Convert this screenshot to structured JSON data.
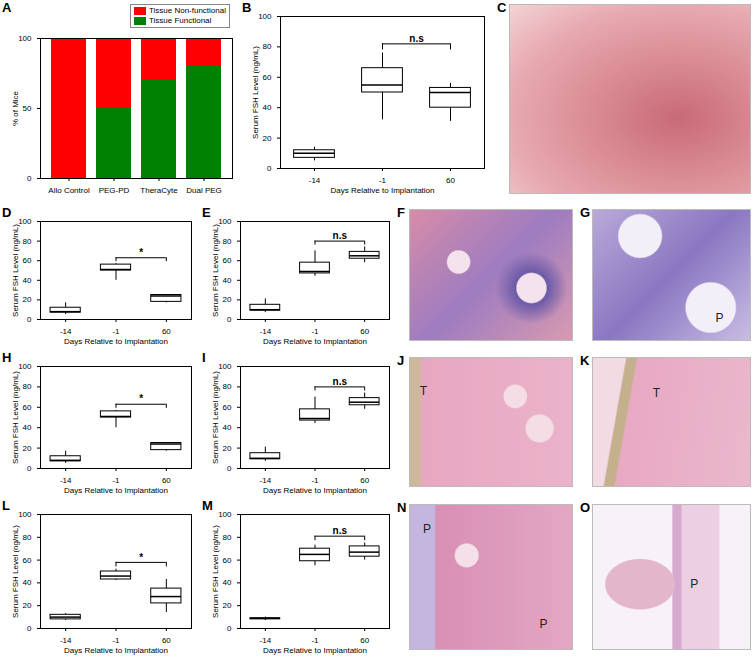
{
  "chart_data": [
    {
      "title": "A",
      "type": "bar",
      "stacked": true,
      "categories": [
        "Allo Control",
        "PEG-PD",
        "TheraCyte",
        "Dual PEG"
      ],
      "series": [
        {
          "name": "Tissue Non-functional",
          "color": "#ff0000",
          "values": [
            100,
            50,
            30,
            20
          ]
        },
        {
          "name": "Tissue Functional",
          "color": "#008000",
          "values": [
            0,
            50,
            70,
            80
          ]
        }
      ],
      "ylabel": "% of Mice",
      "ylim": [
        0,
        100
      ],
      "yticks": [
        0,
        50,
        100
      ],
      "legend": "top-right"
    },
    {
      "title": "B",
      "type": "box",
      "categories": [
        "-14",
        "-1",
        "60"
      ],
      "xlabel": "Days Relative to Implantation",
      "ylabel": "Serum FSH Level (ng/mL)",
      "ylim": [
        0,
        100
      ],
      "yticks": [
        0,
        20,
        40,
        60,
        80,
        100
      ],
      "min": [
        5,
        32,
        31
      ],
      "q1": [
        7,
        50,
        40
      ],
      "median": [
        10,
        55,
        50
      ],
      "q3": [
        12,
        66,
        53
      ],
      "max": [
        14,
        76,
        56
      ],
      "annotations": [
        {
          "text": "n.s",
          "from": "-1",
          "to": "60"
        }
      ]
    },
    {
      "title": "D",
      "type": "box",
      "categories": [
        "-14",
        "-1",
        "60"
      ],
      "xlabel": "Days Relative to Implantation",
      "ylabel": "Serum FSH Level (ng/mL)",
      "ylim": [
        0,
        100
      ],
      "yticks": [
        0,
        20,
        40,
        60,
        80,
        100
      ],
      "min": [
        5,
        40,
        17
      ],
      "q1": [
        7,
        50,
        18
      ],
      "median": [
        8,
        51,
        24
      ],
      "q3": [
        12,
        56,
        25
      ],
      "max": [
        17,
        57,
        25
      ],
      "annotations": [
        {
          "text": "*",
          "from": "-1",
          "to": "60"
        }
      ]
    },
    {
      "title": "E",
      "type": "box",
      "categories": [
        "-14",
        "-1",
        "60"
      ],
      "xlabel": "Days Relative to Implantation",
      "ylabel": "Serum FSH Level (ng/mL)",
      "ylim": [
        0,
        100
      ],
      "yticks": [
        0,
        20,
        40,
        60,
        80,
        100
      ],
      "min": [
        7,
        44,
        58
      ],
      "q1": [
        9,
        47,
        62
      ],
      "median": [
        10,
        49,
        65
      ],
      "q3": [
        15,
        58,
        69
      ],
      "max": [
        21,
        70,
        74
      ],
      "annotations": [
        {
          "text": "n.s",
          "from": "-1",
          "to": "60"
        }
      ]
    },
    {
      "title": "H",
      "type": "box",
      "categories": [
        "-14",
        "-1",
        "60"
      ],
      "xlabel": "Days Relative to Implantation",
      "ylabel": "Serum FSH Level (ng/mL)",
      "ylim": [
        0,
        100
      ],
      "yticks": [
        0,
        20,
        40,
        60,
        80,
        100
      ],
      "min": [
        5,
        40,
        17
      ],
      "q1": [
        7,
        50,
        18
      ],
      "median": [
        8,
        51,
        24
      ],
      "q3": [
        12,
        56,
        25
      ],
      "max": [
        17,
        57,
        25
      ],
      "annotations": [
        {
          "text": "*",
          "from": "-1",
          "to": "60"
        }
      ]
    },
    {
      "title": "I",
      "type": "box",
      "categories": [
        "-14",
        "-1",
        "60"
      ],
      "xlabel": "Days Relative to Implantation",
      "ylabel": "Serum FSH Level (ng/mL)",
      "ylim": [
        0,
        100
      ],
      "yticks": [
        0,
        20,
        40,
        60,
        80,
        100
      ],
      "min": [
        7,
        44,
        58
      ],
      "q1": [
        9,
        47,
        62
      ],
      "median": [
        10,
        49,
        65
      ],
      "q3": [
        15,
        58,
        69
      ],
      "max": [
        21,
        70,
        74
      ],
      "annotations": [
        {
          "text": "n.s",
          "from": "-1",
          "to": "60"
        }
      ]
    },
    {
      "title": "L",
      "type": "box",
      "categories": [
        "-14",
        "-1",
        "60"
      ],
      "xlabel": "Days Relative to Implantation",
      "ylabel": "Serum FSH Level (ng/mL)",
      "ylim": [
        0,
        100
      ],
      "yticks": [
        0,
        20,
        40,
        60,
        80,
        100
      ],
      "min": [
        7,
        42,
        14
      ],
      "q1": [
        8,
        43,
        22
      ],
      "median": [
        10,
        46,
        28
      ],
      "q3": [
        12,
        50,
        35
      ],
      "max": [
        13,
        52,
        43
      ],
      "annotations": [
        {
          "text": "*",
          "from": "-1",
          "to": "60"
        }
      ]
    },
    {
      "title": "M",
      "type": "box",
      "categories": [
        "-14",
        "-1",
        "60"
      ],
      "xlabel": "Days Relative to Implantation",
      "ylabel": "Serum FSH Level (ng/mL)",
      "ylim": [
        0,
        100
      ],
      "yticks": [
        0,
        20,
        40,
        60,
        80,
        100
      ],
      "min": [
        7,
        55,
        60
      ],
      "q1": [
        8,
        59,
        63
      ],
      "median": [
        9,
        65,
        67
      ],
      "q3": [
        9,
        70,
        72
      ],
      "max": [
        10,
        73,
        75
      ],
      "annotations": [
        {
          "text": "n.s",
          "from": "-1",
          "to": "60"
        }
      ]
    }
  ],
  "images": [
    {
      "title": "C"
    },
    {
      "title": "F"
    },
    {
      "title": "G",
      "labels": [
        "P"
      ]
    },
    {
      "title": "J",
      "labels": [
        "T"
      ]
    },
    {
      "title": "K",
      "labels": [
        "T"
      ]
    },
    {
      "title": "N",
      "labels": [
        "P",
        "P"
      ]
    },
    {
      "title": "O",
      "labels": [
        "P"
      ]
    }
  ]
}
